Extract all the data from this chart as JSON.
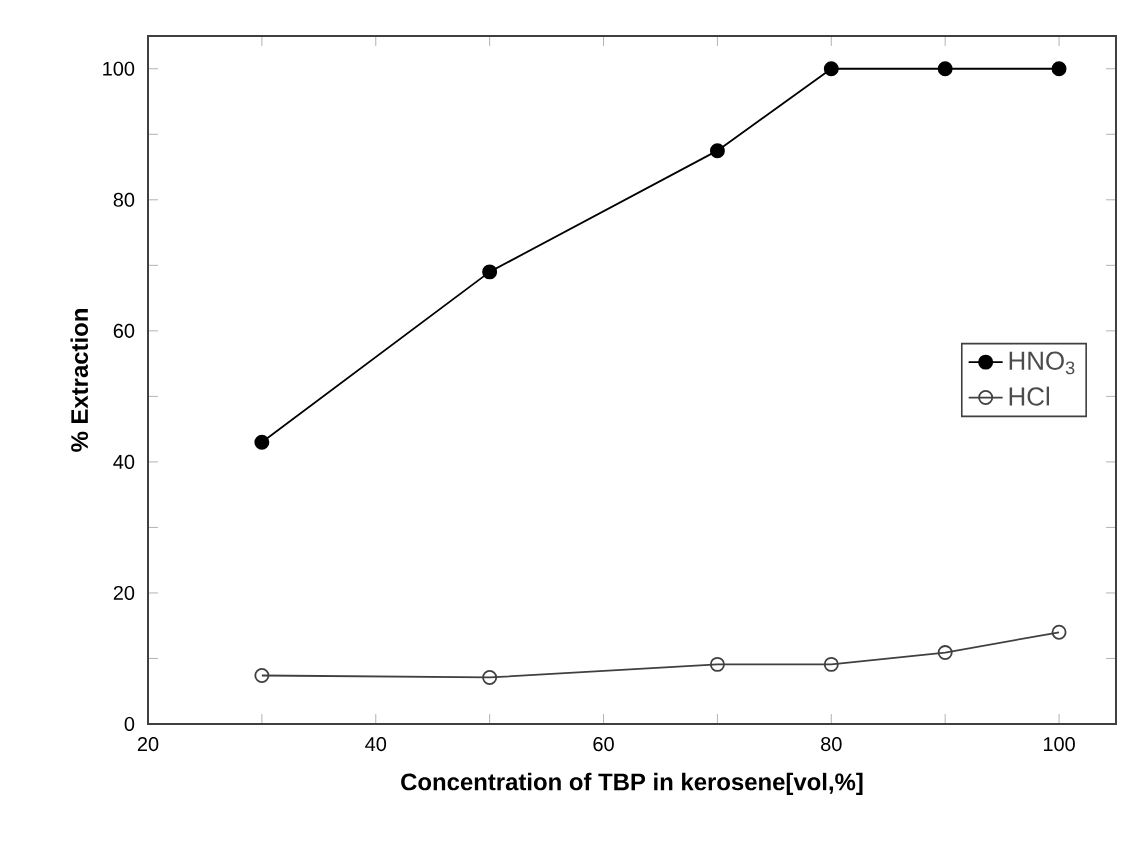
{
  "chart_data": {
    "type": "line",
    "xlabel": "Concentration of TBP in kerosene[vol,%]",
    "ylabel": "% Extraction",
    "x": [
      30,
      50,
      70,
      80,
      90,
      100
    ],
    "series": [
      {
        "name": "HNO$_{3}$",
        "color": "#000000",
        "marker": "circle",
        "values": [
          43,
          69,
          87.5,
          100,
          100,
          100
        ]
      },
      {
        "name": "HCl",
        "color": "#404040",
        "marker": "open circle",
        "values": [
          7.4,
          7.1,
          9.1,
          9.1,
          10.9,
          14
        ]
      }
    ],
    "xlim": [
      20,
      105
    ],
    "ylim": [
      0,
      105
    ],
    "xticks": [
      20,
      {
        "value": 30,
        "label": null
      },
      40,
      {
        "value": 50,
        "label": null
      },
      60,
      {
        "value": 70,
        "label": null
      },
      80,
      {
        "value": 90,
        "label": null
      },
      100
    ],
    "yticks": [
      0,
      {
        "value": 10,
        "label": null
      },
      20,
      {
        "value": 30,
        "label": null
      },
      40,
      {
        "value": 50,
        "label": null
      },
      60,
      {
        "value": 70,
        "label": null
      },
      80,
      {
        "value": 90,
        "label": null
      },
      100
    ],
    "legend": "right",
    "grid": false
  }
}
